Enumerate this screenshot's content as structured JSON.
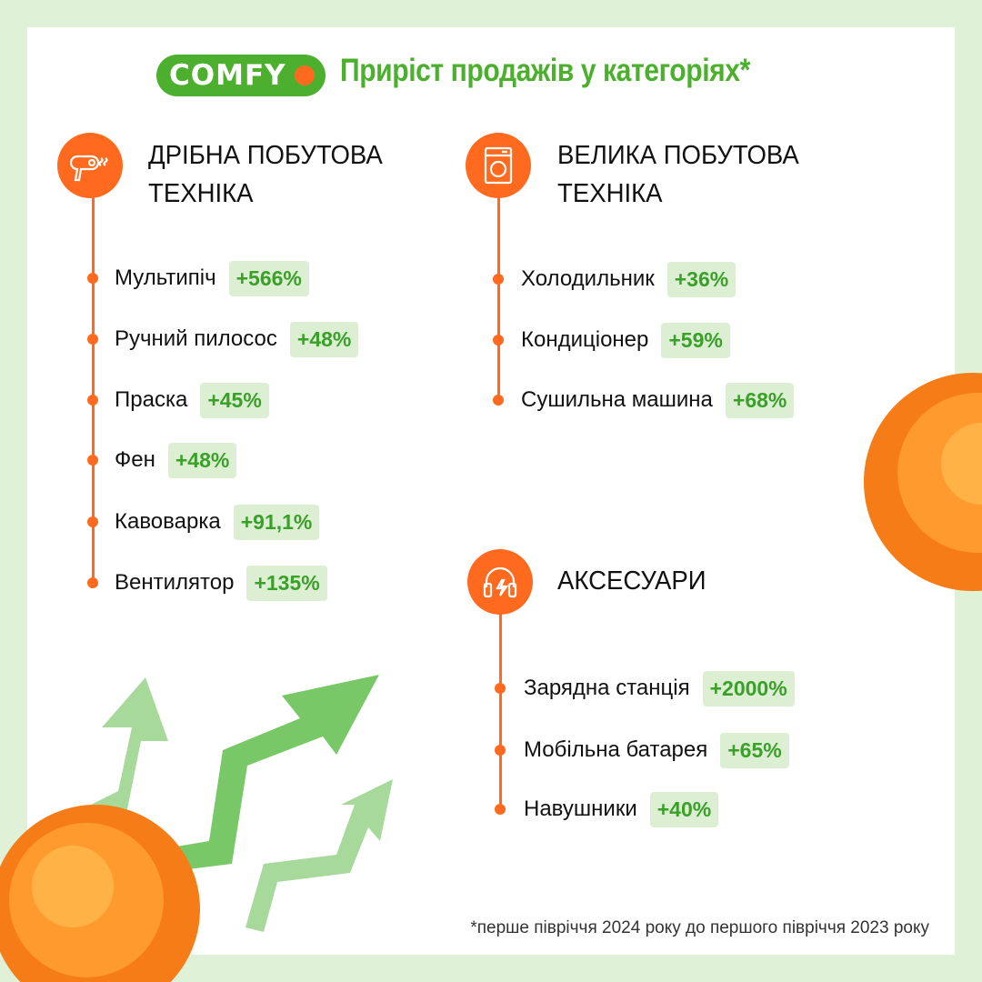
{
  "logo": "COMFY",
  "title": "Приріст продажів у категоріях*",
  "colors": {
    "accent": "#ff6a1f",
    "green": "#4cb02e",
    "badge_bg": "#dcefd3"
  },
  "sections": [
    {
      "icon": "hair-dryer-icon",
      "heading": [
        "ДРІБНА ПОБУТОВА",
        "ТЕХНІКА"
      ],
      "items": [
        {
          "label": "Мультипіч",
          "value": "+566%"
        },
        {
          "label": "Ручний пилосос",
          "value": "+48%"
        },
        {
          "label": "Праска",
          "value": "+45%"
        },
        {
          "label": "Фен",
          "value": "+48%"
        },
        {
          "label": "Кавоварка",
          "value": "+91,1%"
        },
        {
          "label": "Вентилятор",
          "value": "+135%"
        }
      ]
    },
    {
      "icon": "washing-machine-icon",
      "heading": [
        "ВЕЛИКА ПОБУТОВА",
        "ТЕХНІКА"
      ],
      "items": [
        {
          "label": "Холодильник",
          "value": "+36%"
        },
        {
          "label": "Кондиціонер",
          "value": "+59%"
        },
        {
          "label": "Сушильна машина",
          "value": "+68%"
        }
      ]
    },
    {
      "icon": "headphones-icon",
      "heading": [
        "АКСЕСУАРИ"
      ],
      "items": [
        {
          "label": "Зарядна станція",
          "value": "+2000%"
        },
        {
          "label": "Мобільна батарея",
          "value": "+65%"
        },
        {
          "label": "Навушники",
          "value": "+40%"
        }
      ]
    }
  ],
  "footnote": "*перше півріччя 2024 року до першого півріччя 2023 року"
}
